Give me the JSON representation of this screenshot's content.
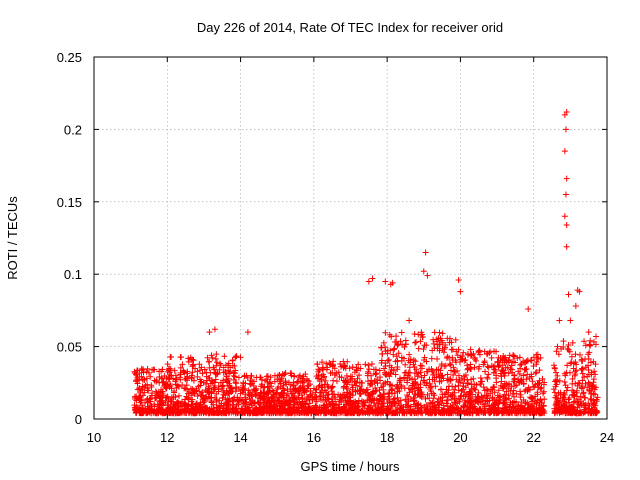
{
  "chart_data": {
    "type": "scatter",
    "title": "Day 226 of 2014, Rate Of TEC Index for receiver orid",
    "xlabel": "GPS time / hours",
    "ylabel": "ROTI / TECUs",
    "xlim": [
      10,
      24
    ],
    "ylim": [
      0,
      0.25
    ],
    "xticks": [
      10,
      12,
      14,
      16,
      18,
      20,
      22,
      24
    ],
    "yticks": [
      0,
      0.05,
      0.1,
      0.15,
      0.2,
      0.25
    ],
    "ytick_labels": [
      "0",
      "0.05",
      "0.1",
      "0.15",
      "0.2",
      "0.25"
    ],
    "grid": true,
    "marker": "+",
    "series": [
      {
        "name": "ROTI",
        "color": "#ff0000",
        "notable_points": [
          {
            "x": 13.15,
            "y": 0.06
          },
          {
            "x": 13.3,
            "y": 0.062
          },
          {
            "x": 14.2,
            "y": 0.06
          },
          {
            "x": 17.5,
            "y": 0.095
          },
          {
            "x": 17.6,
            "y": 0.097
          },
          {
            "x": 17.95,
            "y": 0.095
          },
          {
            "x": 18.1,
            "y": 0.093
          },
          {
            "x": 18.15,
            "y": 0.094
          },
          {
            "x": 18.6,
            "y": 0.068
          },
          {
            "x": 19.0,
            "y": 0.102
          },
          {
            "x": 19.05,
            "y": 0.115
          },
          {
            "x": 19.1,
            "y": 0.099
          },
          {
            "x": 19.95,
            "y": 0.096
          },
          {
            "x": 20.0,
            "y": 0.088
          },
          {
            "x": 21.85,
            "y": 0.076
          },
          {
            "x": 22.7,
            "y": 0.068
          },
          {
            "x": 22.85,
            "y": 0.21
          },
          {
            "x": 22.9,
            "y": 0.212
          },
          {
            "x": 22.88,
            "y": 0.2
          },
          {
            "x": 22.85,
            "y": 0.185
          },
          {
            "x": 22.9,
            "y": 0.166
          },
          {
            "x": 22.88,
            "y": 0.155
          },
          {
            "x": 22.85,
            "y": 0.14
          },
          {
            "x": 22.9,
            "y": 0.134
          },
          {
            "x": 22.9,
            "y": 0.119
          },
          {
            "x": 22.95,
            "y": 0.086
          },
          {
            "x": 23.2,
            "y": 0.089
          },
          {
            "x": 23.25,
            "y": 0.088
          },
          {
            "x": 23.15,
            "y": 0.078
          },
          {
            "x": 23.0,
            "y": 0.068
          },
          {
            "x": 23.5,
            "y": 0.06
          },
          {
            "x": 23.7,
            "y": 0.057
          }
        ],
        "dense_segments": [
          {
            "x_start": 11.1,
            "x_end": 12.0,
            "y_min": 0.004,
            "y_max": 0.035
          },
          {
            "x_start": 12.0,
            "x_end": 13.0,
            "y_min": 0.004,
            "y_max": 0.043
          },
          {
            "x_start": 13.0,
            "x_end": 14.0,
            "y_min": 0.004,
            "y_max": 0.045
          },
          {
            "x_start": 14.0,
            "x_end": 15.0,
            "y_min": 0.004,
            "y_max": 0.03
          },
          {
            "x_start": 15.0,
            "x_end": 16.0,
            "y_min": 0.004,
            "y_max": 0.032
          },
          {
            "x_start": 16.0,
            "x_end": 17.0,
            "y_min": 0.004,
            "y_max": 0.04
          },
          {
            "x_start": 17.0,
            "x_end": 17.8,
            "y_min": 0.004,
            "y_max": 0.038
          },
          {
            "x_start": 17.8,
            "x_end": 18.9,
            "y_min": 0.004,
            "y_max": 0.06
          },
          {
            "x_start": 18.9,
            "x_end": 19.9,
            "y_min": 0.004,
            "y_max": 0.06
          },
          {
            "x_start": 19.9,
            "x_end": 21.0,
            "y_min": 0.004,
            "y_max": 0.048
          },
          {
            "x_start": 21.0,
            "x_end": 22.3,
            "y_min": 0.004,
            "y_max": 0.045
          },
          {
            "x_start": 22.55,
            "x_end": 23.75,
            "y_min": 0.004,
            "y_max": 0.055
          }
        ]
      }
    ]
  }
}
